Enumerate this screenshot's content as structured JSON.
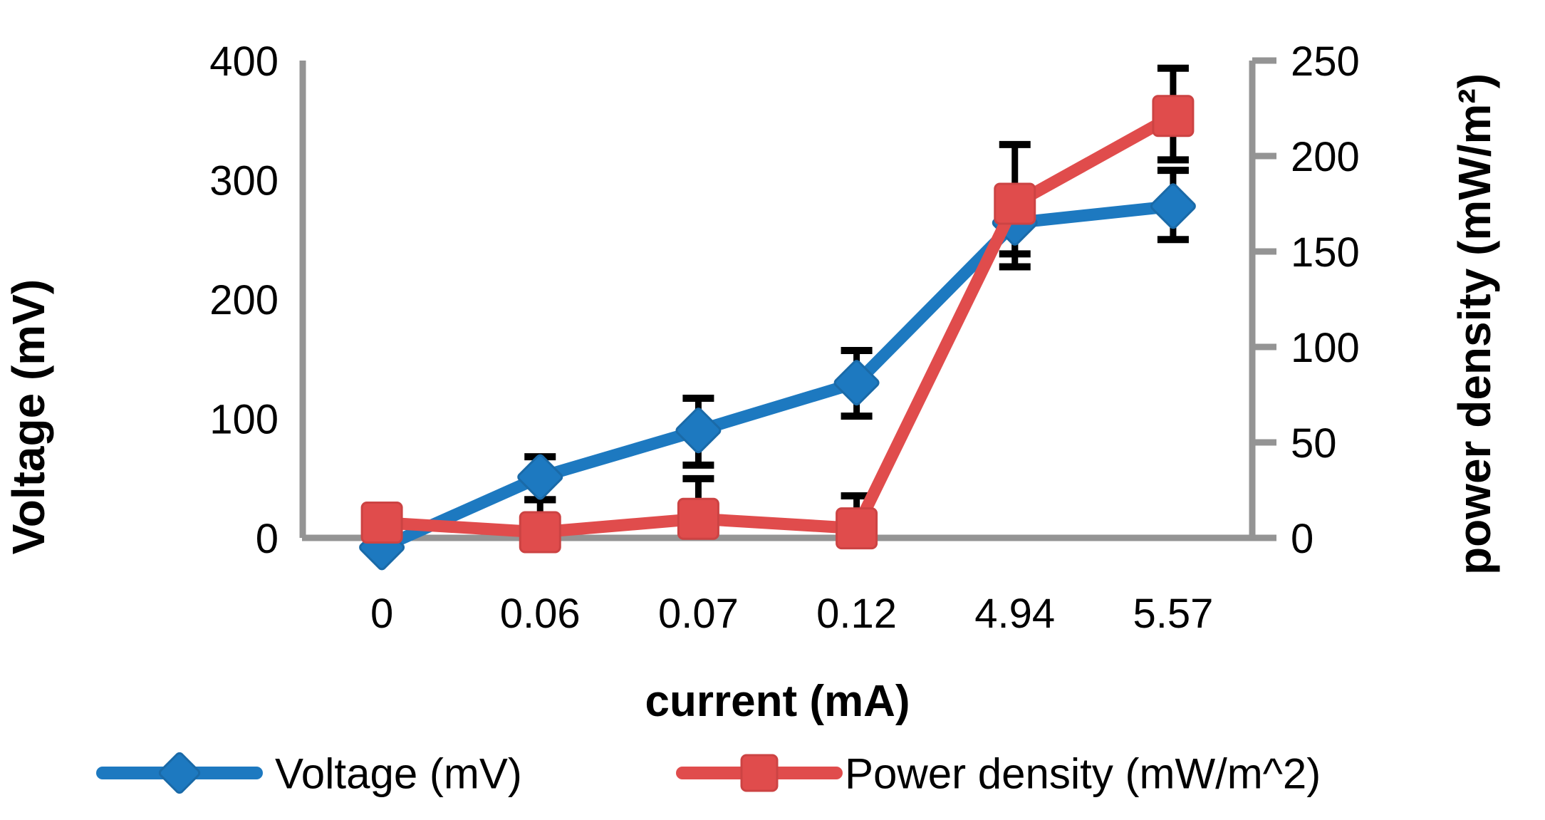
{
  "chart_data": {
    "type": "line",
    "title": "",
    "categories": [
      "0",
      "0.06",
      "0.07",
      "0.12",
      "4.94",
      "5.57"
    ],
    "xlabel": "current (mA)",
    "y_left": {
      "label": "Voltage (mV)",
      "lim": [
        0,
        400
      ],
      "ticks": [
        0,
        100,
        200,
        300,
        400
      ]
    },
    "y_right": {
      "label": "power density (mW/m²)",
      "lim": [
        0,
        250
      ],
      "ticks": [
        0,
        50,
        100,
        150,
        200,
        250
      ]
    },
    "grid": false,
    "legend_position": "bottom",
    "axis_color": "#949494",
    "error_bar_color": "#000000",
    "series": [
      {
        "name": "Voltage (mV)",
        "axis": "left",
        "marker": "diamond",
        "color": "#1d79c0",
        "marker_stroke": "#1a6aa8",
        "values": [
          -8,
          51,
          90,
          130,
          264,
          278
        ],
        "err_up": [
          0,
          17,
          27,
          27,
          25,
          30
        ],
        "err_down": [
          0,
          19,
          29,
          28,
          26,
          28
        ]
      },
      {
        "name": "Power density (mW/m^2)",
        "axis": "right",
        "marker": "square",
        "color": "#e04c4c",
        "marker_stroke": "#cc4343",
        "values": [
          8,
          3,
          10,
          5,
          175,
          221
        ],
        "err_up": [
          0,
          17,
          21,
          17,
          31,
          25
        ],
        "err_down": [
          0,
          0,
          0,
          0,
          33,
          23
        ]
      }
    ]
  }
}
